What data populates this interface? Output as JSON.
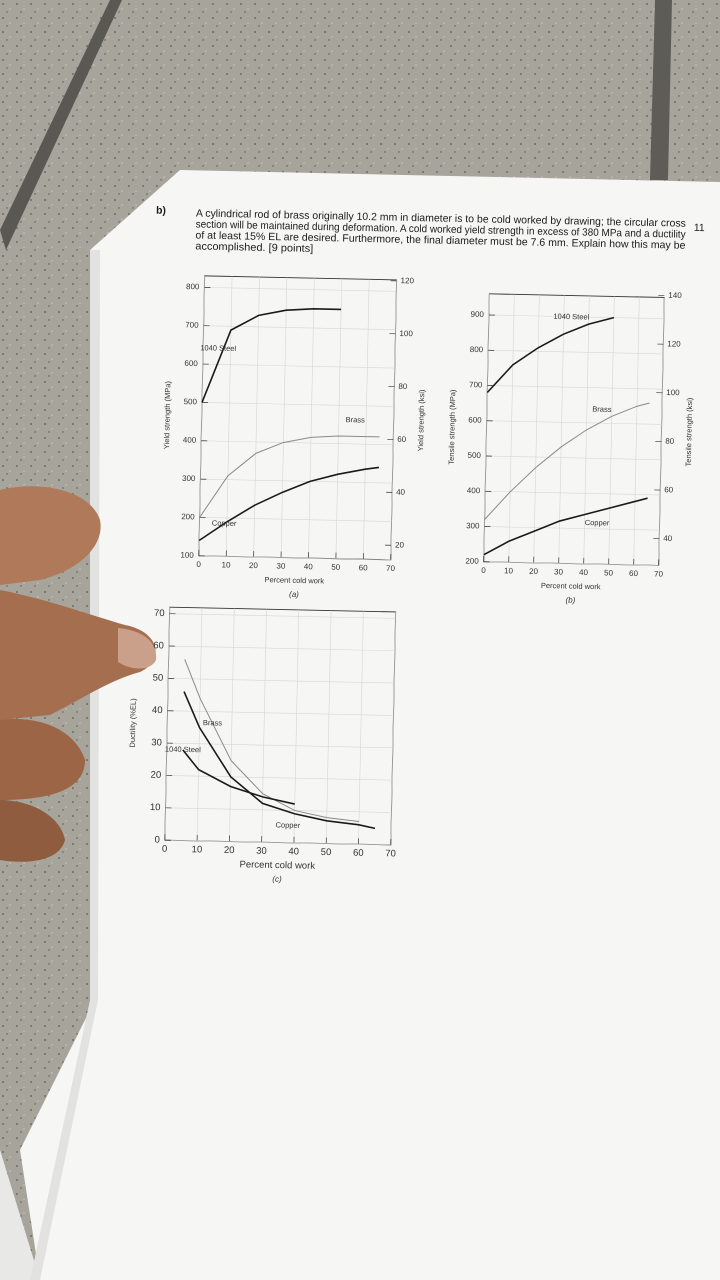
{
  "question": {
    "label": "b)",
    "page_number": "11",
    "lines": [
      "A cylindrical rod of brass originally 10.2 mm in diameter is to be cold worked by drawing; the circular cross",
      "section will be maintained during deformation. A cold worked yield strength in excess of 380 MPa and a ductility",
      "of at least 15% EL are desired. Furthermore, the final diameter must be 7.6 mm. Explain how this may be",
      "accomplished. [9 points]"
    ]
  },
  "chart_data": [
    {
      "type": "line",
      "caption": "(a)",
      "x_label": "Percent cold work",
      "y_label": "Yield strength (MPa)",
      "y2_label": "Yield strength (ksi)",
      "x": [
        0,
        10,
        20,
        30,
        40,
        50,
        60,
        65
      ],
      "series": [
        {
          "name": "1040 Steel",
          "color": "#1a1a1a",
          "values": [
            500,
            690,
            730,
            745,
            750,
            750,
            null,
            null
          ]
        },
        {
          "name": "Brass",
          "color": "#8a8a8a",
          "values": [
            200,
            310,
            370,
            400,
            415,
            420,
            420,
            420
          ]
        },
        {
          "name": "Copper",
          "color": "#1a1a1a",
          "values": [
            140,
            190,
            235,
            270,
            300,
            320,
            335,
            340
          ]
        }
      ],
      "xlim": [
        0,
        70
      ],
      "xticks": [
        0,
        10,
        20,
        30,
        40,
        50,
        60,
        70
      ],
      "ylim": [
        100,
        830
      ],
      "yticks": [
        100,
        200,
        300,
        400,
        500,
        600,
        700,
        800
      ],
      "y2lim": [
        14.5,
        120.4
      ],
      "y2ticks": [
        20,
        40,
        60,
        80,
        100,
        120
      ],
      "grid": true
    },
    {
      "type": "line",
      "caption": "(b)",
      "x_label": "Percent cold work",
      "y_label": "Tensile strength (MPa)",
      "y2_label": "Tensile strength (ksi)",
      "x": [
        0,
        10,
        20,
        30,
        40,
        50,
        60,
        65
      ],
      "series": [
        {
          "name": "1040 Steel",
          "color": "#1a1a1a",
          "values": [
            680,
            760,
            810,
            850,
            880,
            900,
            null,
            null
          ]
        },
        {
          "name": "Brass",
          "color": "#8a8a8a",
          "values": [
            320,
            400,
            470,
            530,
            580,
            620,
            650,
            660
          ]
        },
        {
          "name": "Copper",
          "color": "#1a1a1a",
          "values": [
            220,
            260,
            290,
            320,
            340,
            360,
            380,
            390
          ]
        }
      ],
      "xlim": [
        0,
        70
      ],
      "xticks": [
        0,
        10,
        20,
        30,
        40,
        50,
        60,
        70
      ],
      "ylim": [
        200,
        960
      ],
      "yticks": [
        200,
        300,
        400,
        500,
        600,
        700,
        800,
        900
      ],
      "y2lim": [
        29,
        139.2
      ],
      "y2ticks": [
        40,
        60,
        80,
        100,
        120,
        140
      ],
      "grid": true
    },
    {
      "type": "line",
      "caption": "(c)",
      "x_label": "Percent cold work",
      "y_label": "Ductility (%EL)",
      "x": [
        5,
        10,
        20,
        30,
        40,
        50,
        60,
        65
      ],
      "series": [
        {
          "name": "Brass",
          "color": "#8a8a8a",
          "values": [
            56,
            44,
            25,
            15,
            10,
            8,
            7,
            null
          ]
        },
        {
          "name": "1040 Steel",
          "color": "#1a1a1a",
          "values": [
            28,
            22,
            17,
            14,
            12,
            null,
            null,
            null
          ]
        },
        {
          "name": "Copper",
          "color": "#1a1a1a",
          "values": [
            46,
            35,
            20,
            12,
            9,
            7,
            6,
            5
          ]
        }
      ],
      "xlim": [
        0,
        70
      ],
      "xticks": [
        0,
        10,
        20,
        30,
        40,
        50,
        60,
        70
      ],
      "ylim": [
        0,
        72
      ],
      "yticks": [
        0,
        10,
        20,
        30,
        40,
        50,
        60,
        70
      ],
      "grid": true
    }
  ]
}
